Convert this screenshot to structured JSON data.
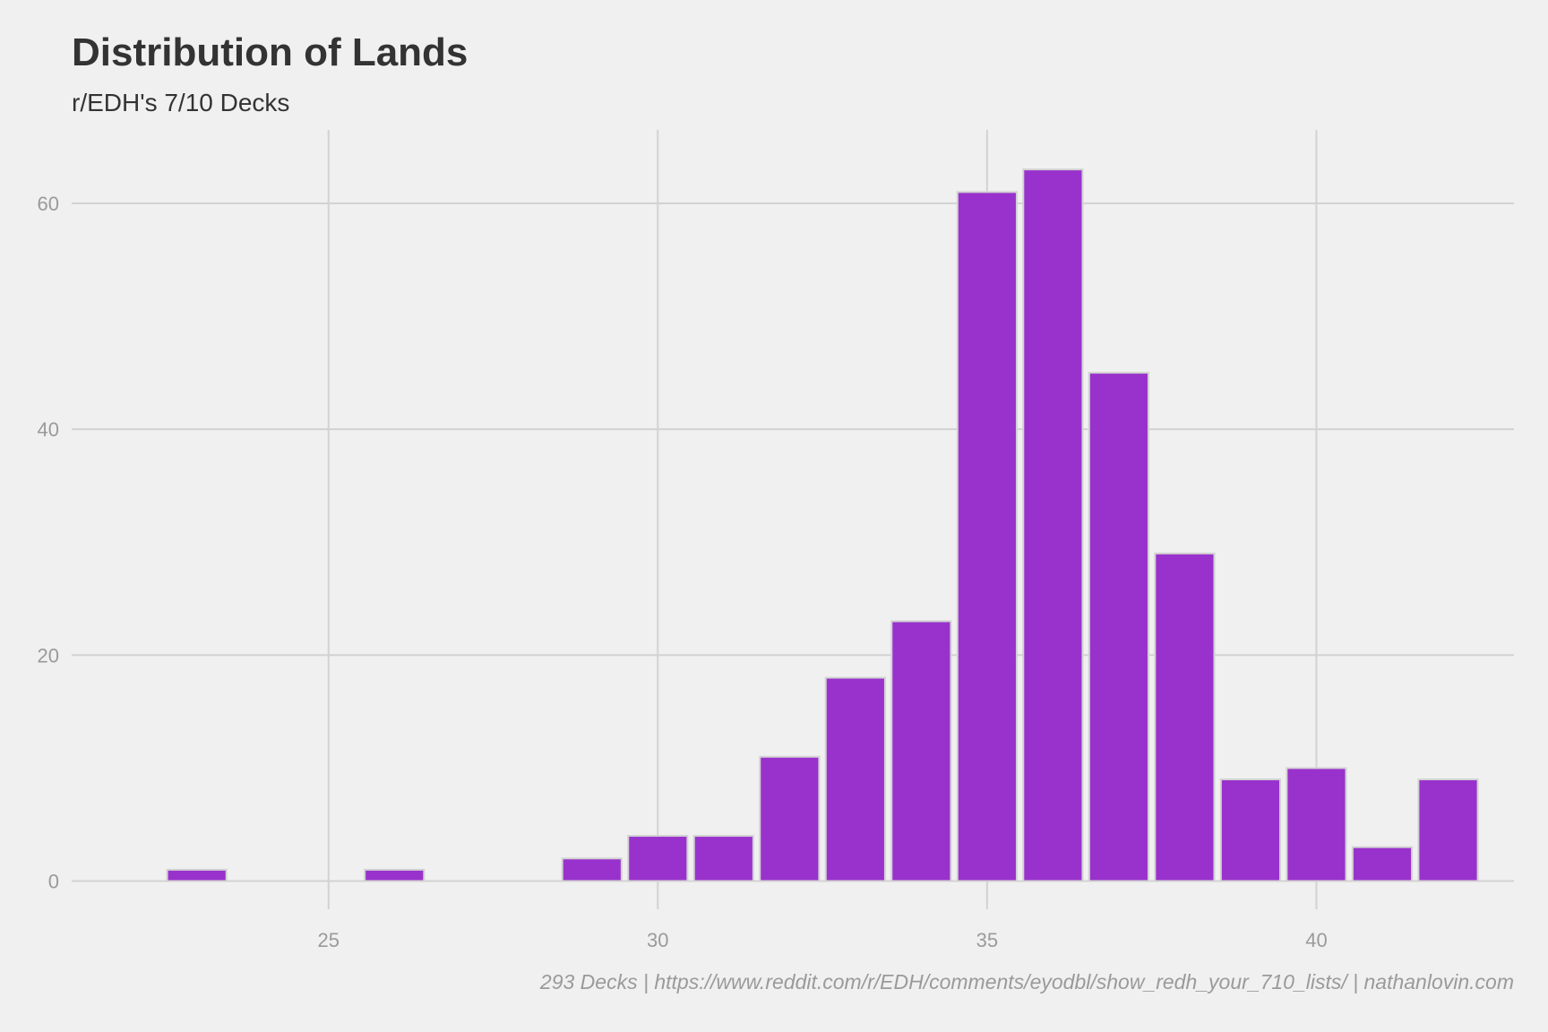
{
  "chart_data": {
    "type": "bar",
    "title": "Distribution of Lands",
    "subtitle": "r/EDH's 7/10 Decks",
    "caption": "293 Decks | https://www.reddit.com/r/EDH/comments/eyodbl/show_redh_your_710_lists/ | nathanlovin.com",
    "xlabel": "",
    "ylabel": "",
    "x": [
      23,
      26,
      29,
      30,
      31,
      32,
      33,
      34,
      35,
      36,
      37,
      38,
      39,
      40,
      41,
      42
    ],
    "values": [
      1,
      1,
      2,
      4,
      4,
      11,
      18,
      23,
      61,
      63,
      45,
      29,
      9,
      10,
      3,
      9
    ],
    "xlim": [
      21.1,
      43.0
    ],
    "ylim": [
      -2.5,
      66.5
    ],
    "x_ticks": [
      25,
      30,
      35,
      40
    ],
    "y_ticks": [
      0,
      20,
      40,
      60
    ],
    "grid": true,
    "legend": "none",
    "bar_color": "#9932CC",
    "bar_outline_color": "#d2d2d2",
    "grid_color": "#d2d2d2",
    "background_color": "#f0f0f0"
  }
}
